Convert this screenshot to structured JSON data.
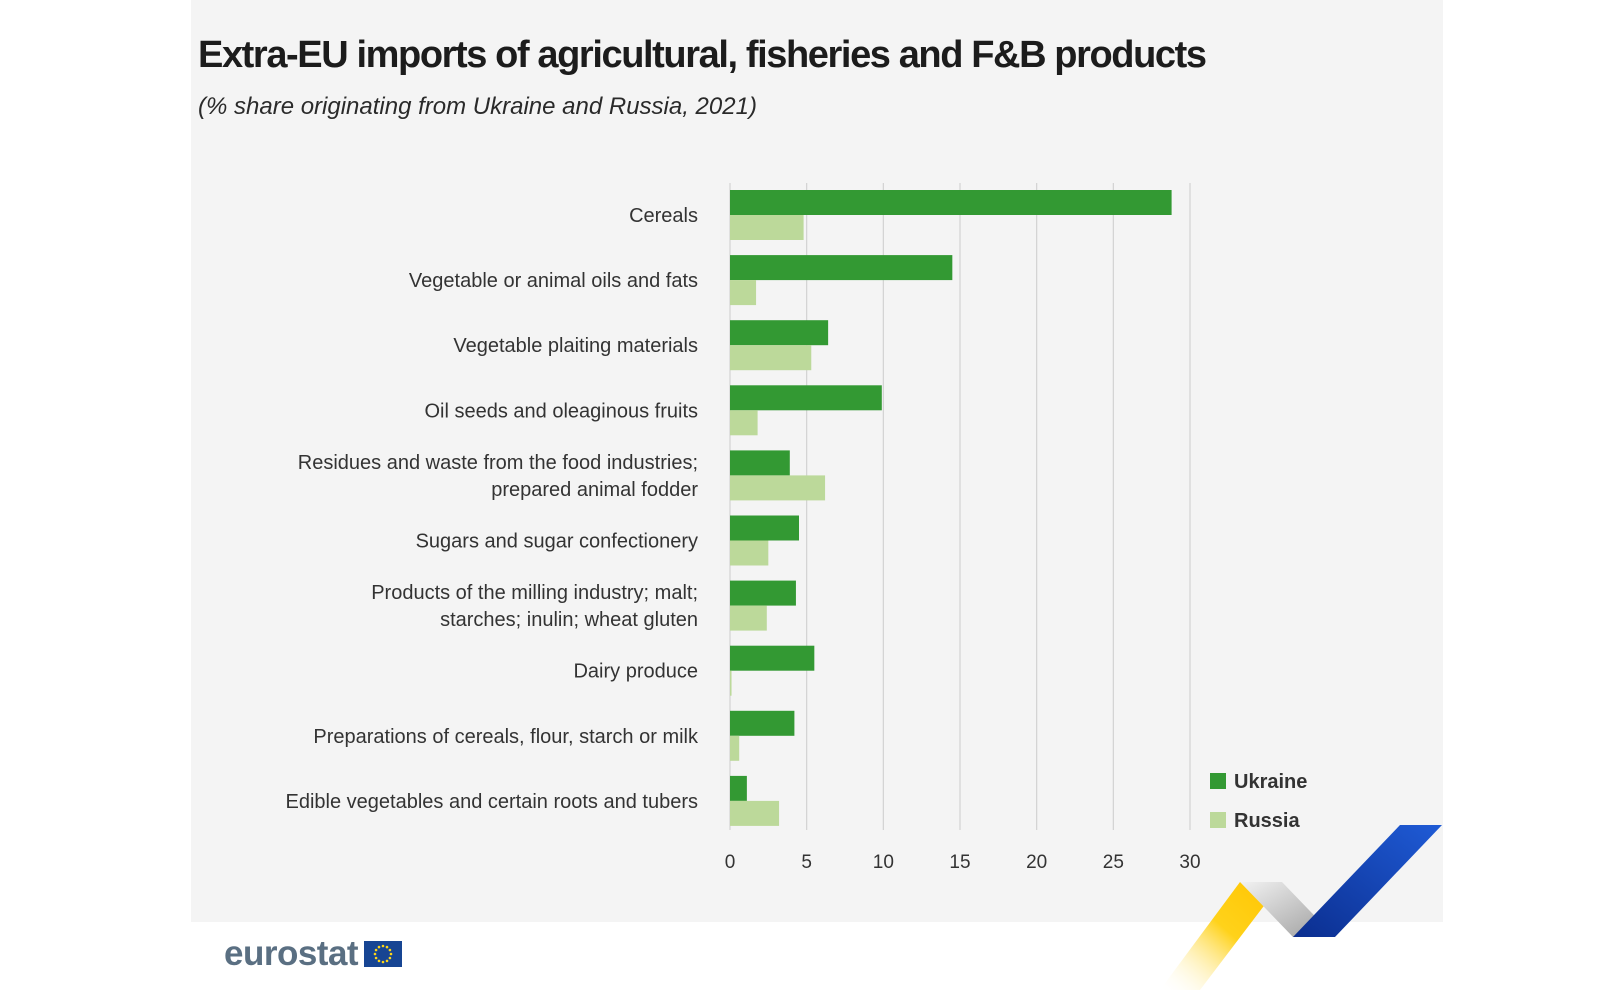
{
  "header": {
    "title": "Extra-EU imports of agricultural, fisheries and F&B products",
    "subtitle": "(% share originating from Ukraine and Russia, 2021)"
  },
  "brand": {
    "name": "eurostat"
  },
  "colors": {
    "ukraine": "#339933",
    "russia": "#bcd99a",
    "panel": "#f4f4f4",
    "grid": "#d2d2d2"
  },
  "chart_data": {
    "type": "bar",
    "orientation": "horizontal",
    "categories": [
      [
        "Cereals"
      ],
      [
        "Vegetable or animal oils and fats"
      ],
      [
        "Vegetable plaiting materials"
      ],
      [
        "Oil seeds and oleaginous fruits"
      ],
      [
        "Residues and waste from the food industries;",
        "prepared animal fodder"
      ],
      [
        "Sugars and sugar confectionery"
      ],
      [
        "Products of the milling industry; malt;",
        "starches; inulin; wheat gluten"
      ],
      [
        "Dairy produce"
      ],
      [
        "Preparations of cereals, flour, starch or milk"
      ],
      [
        "Edible vegetables and certain roots and tubers"
      ]
    ],
    "series": [
      {
        "name": "Ukraine",
        "values": [
          28.8,
          14.5,
          6.4,
          9.9,
          3.9,
          4.5,
          4.3,
          5.5,
          4.2,
          1.1
        ]
      },
      {
        "name": "Russia",
        "values": [
          4.8,
          1.7,
          5.3,
          1.8,
          6.2,
          2.5,
          2.4,
          0.1,
          0.6,
          3.2
        ]
      }
    ],
    "xlim": [
      0,
      30
    ],
    "xticks": [
      0,
      5,
      10,
      15,
      20,
      25,
      30
    ],
    "grid": "vertical",
    "legend_position": "bottom-right"
  }
}
